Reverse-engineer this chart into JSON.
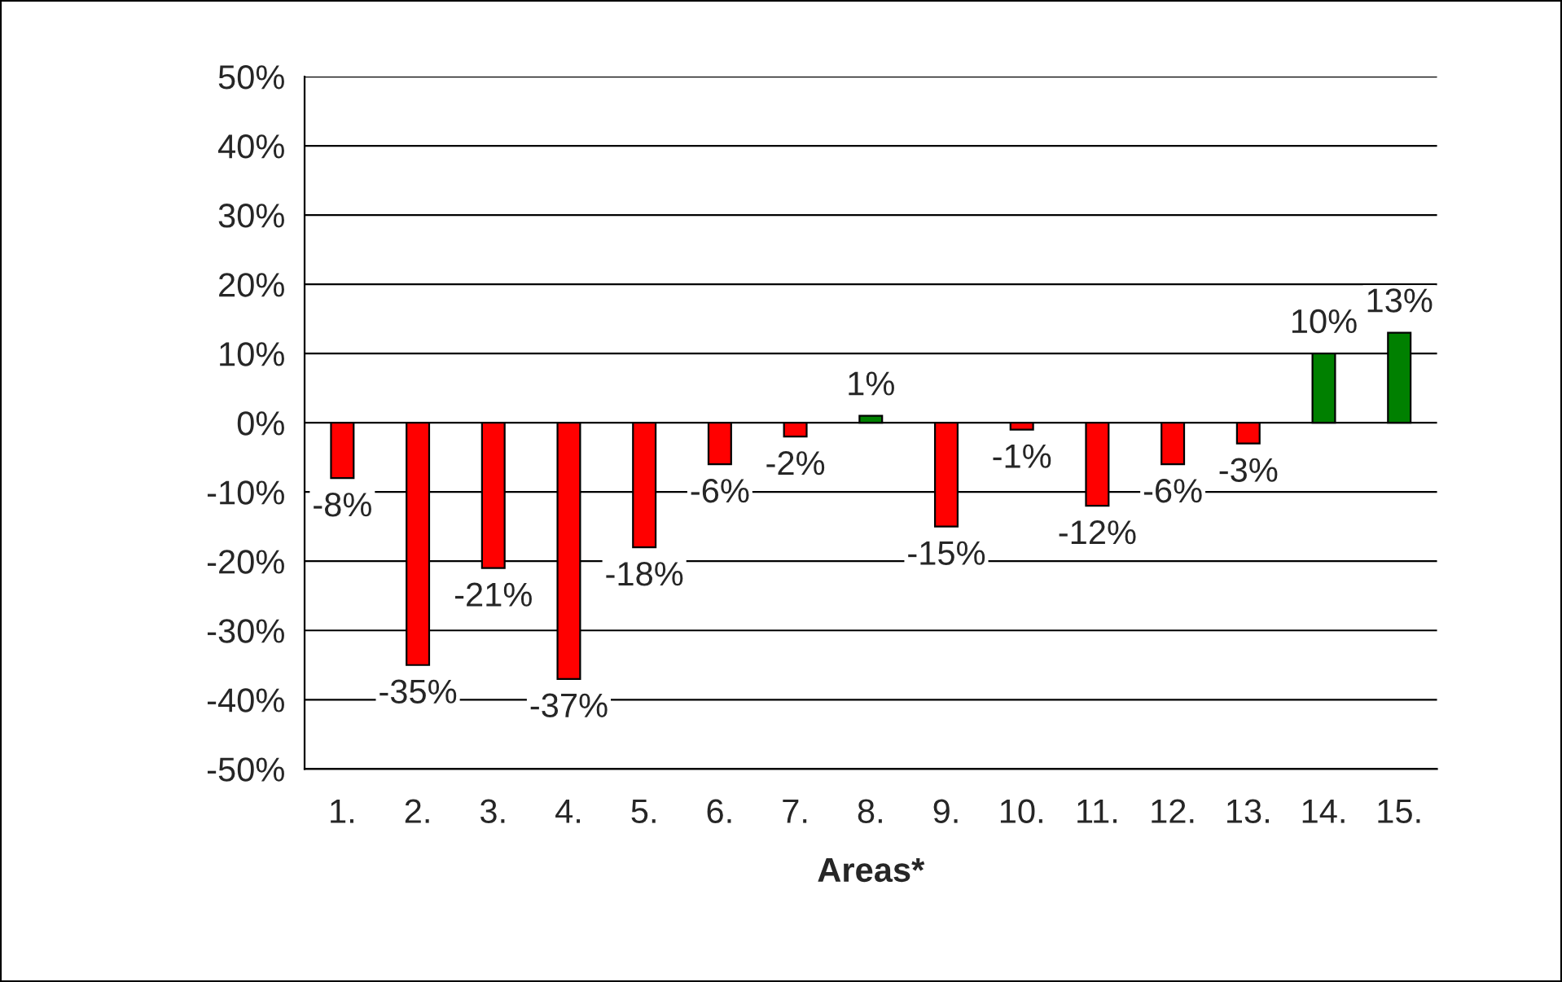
{
  "chart_data": {
    "type": "bar",
    "xlabel": "Areas*",
    "categories": [
      "1.",
      "2.",
      "3.",
      "4.",
      "5.",
      "6.",
      "7.",
      "8.",
      "9.",
      "10.",
      "11.",
      "12.",
      "13.",
      "14.",
      "15."
    ],
    "values": [
      -8,
      -35,
      -21,
      -37,
      -18,
      -6,
      -2,
      1,
      -15,
      -1,
      -12,
      -6,
      -3,
      10,
      13
    ],
    "colors": [
      "#ff0000",
      "#ff0000",
      "#ff0000",
      "#ff0000",
      "#ff0000",
      "#ff0000",
      "#ff0000",
      "#008000",
      "#ff0000",
      "#ff0000",
      "#ff0000",
      "#ff0000",
      "#ff0000",
      "#008000",
      "#008000"
    ],
    "value_labels": [
      "-8%",
      "-35%",
      "-21%",
      "-37%",
      "-18%",
      "-6%",
      "-2%",
      "1%",
      "-15%",
      "-1%",
      "-12%",
      "-6%",
      "-3%",
      "10%",
      "13%"
    ],
    "ylim": [
      -50,
      50
    ],
    "yticks": [
      {
        "value": -50,
        "label": "-50%"
      },
      {
        "value": -40,
        "label": "-40%"
      },
      {
        "value": -30,
        "label": "-30%"
      },
      {
        "value": -20,
        "label": "-20%"
      },
      {
        "value": -10,
        "label": "-10%"
      },
      {
        "value": 0,
        "label": "0%"
      },
      {
        "value": 10,
        "label": "10%"
      },
      {
        "value": 20,
        "label": "20%"
      },
      {
        "value": 30,
        "label": "30%"
      },
      {
        "value": 40,
        "label": "40%"
      },
      {
        "value": 50,
        "label": "50%"
      }
    ],
    "grid": "y",
    "legend": false
  }
}
